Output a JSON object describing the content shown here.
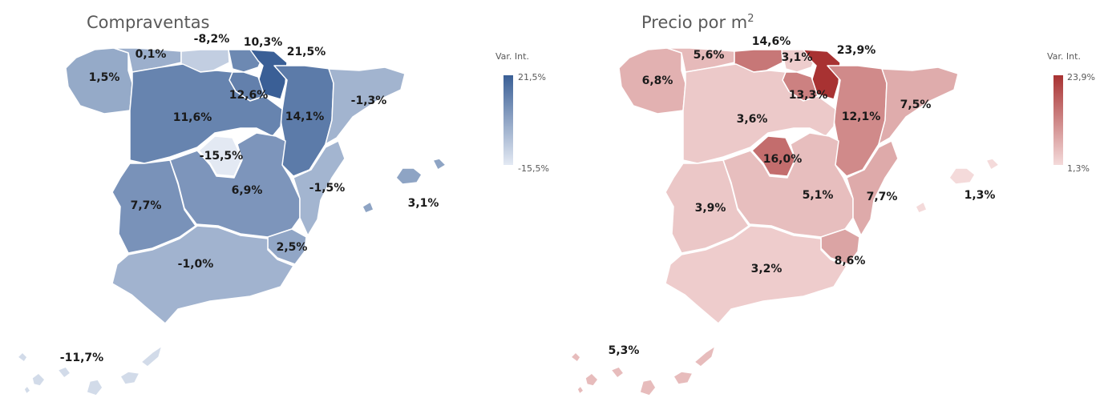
{
  "maps": [
    {
      "title": "Compraventas",
      "title_sup": "",
      "legend": {
        "title": "Var. Int.",
        "max": "21,5%",
        "min": "-15,5%",
        "min_color": "#e3e9f3",
        "max_color": "#3a5f96"
      },
      "regions": [
        {
          "id": "galicia",
          "label": "1,5%",
          "value": 1.5
        },
        {
          "id": "asturias",
          "label": "0,1%",
          "value": 0.1
        },
        {
          "id": "cantabria",
          "label": "-8,2%",
          "value": -8.2
        },
        {
          "id": "pais-vasco",
          "label": "10,3%",
          "value": 10.3
        },
        {
          "id": "navarra",
          "label": "21,5%",
          "value": 21.5
        },
        {
          "id": "la-rioja",
          "label": "12,6%",
          "value": 12.6
        },
        {
          "id": "aragon",
          "label": "14,1%",
          "value": 14.1
        },
        {
          "id": "cataluna",
          "label": "-1,3%",
          "value": -1.3
        },
        {
          "id": "castilla-leon",
          "label": "11,6%",
          "value": 11.6
        },
        {
          "id": "madrid",
          "label": "-15,5%",
          "value": -15.5
        },
        {
          "id": "castilla-la-mancha",
          "label": "6,9%",
          "value": 6.9
        },
        {
          "id": "valencia",
          "label": "-1,5%",
          "value": -1.5
        },
        {
          "id": "extremadura",
          "label": "7,7%",
          "value": 7.7
        },
        {
          "id": "murcia",
          "label": "2,5%",
          "value": 2.5
        },
        {
          "id": "andalucia",
          "label": "-1,0%",
          "value": -1.0
        },
        {
          "id": "baleares",
          "label": "3,1%",
          "value": 3.1
        },
        {
          "id": "canarias",
          "label": "-11,7%",
          "value": -11.7
        }
      ]
    },
    {
      "title": "Precio por m",
      "title_sup": "2",
      "legend": {
        "title": "Var. Int.",
        "max": "23,9%",
        "min": "1,3%",
        "min_color": "#f4dada",
        "max_color": "#a83232"
      },
      "regions": [
        {
          "id": "galicia",
          "label": "6,8%",
          "value": 6.8
        },
        {
          "id": "asturias",
          "label": "5,6%",
          "value": 5.6
        },
        {
          "id": "cantabria",
          "label": "14,6%",
          "value": 14.6
        },
        {
          "id": "pais-vasco",
          "label": "3,1%",
          "value": 3.1
        },
        {
          "id": "navarra",
          "label": "23,9%",
          "value": 23.9
        },
        {
          "id": "la-rioja",
          "label": "13,3%",
          "value": 13.3
        },
        {
          "id": "aragon",
          "label": "12,1%",
          "value": 12.1
        },
        {
          "id": "cataluna",
          "label": "7,5%",
          "value": 7.5
        },
        {
          "id": "castilla-leon",
          "label": "3,6%",
          "value": 3.6
        },
        {
          "id": "madrid",
          "label": "16,0%",
          "value": 16.0
        },
        {
          "id": "castilla-la-mancha",
          "label": "5,1%",
          "value": 5.1
        },
        {
          "id": "valencia",
          "label": "7,7%",
          "value": 7.7
        },
        {
          "id": "extremadura",
          "label": "3,9%",
          "value": 3.9
        },
        {
          "id": "murcia",
          "label": "8,6%",
          "value": 8.6
        },
        {
          "id": "andalucia",
          "label": "3,2%",
          "value": 3.2
        },
        {
          "id": "baleares",
          "label": "1,3%",
          "value": 1.3
        },
        {
          "id": "canarias",
          "label": "5,3%",
          "value": 5.3
        }
      ]
    }
  ]
}
